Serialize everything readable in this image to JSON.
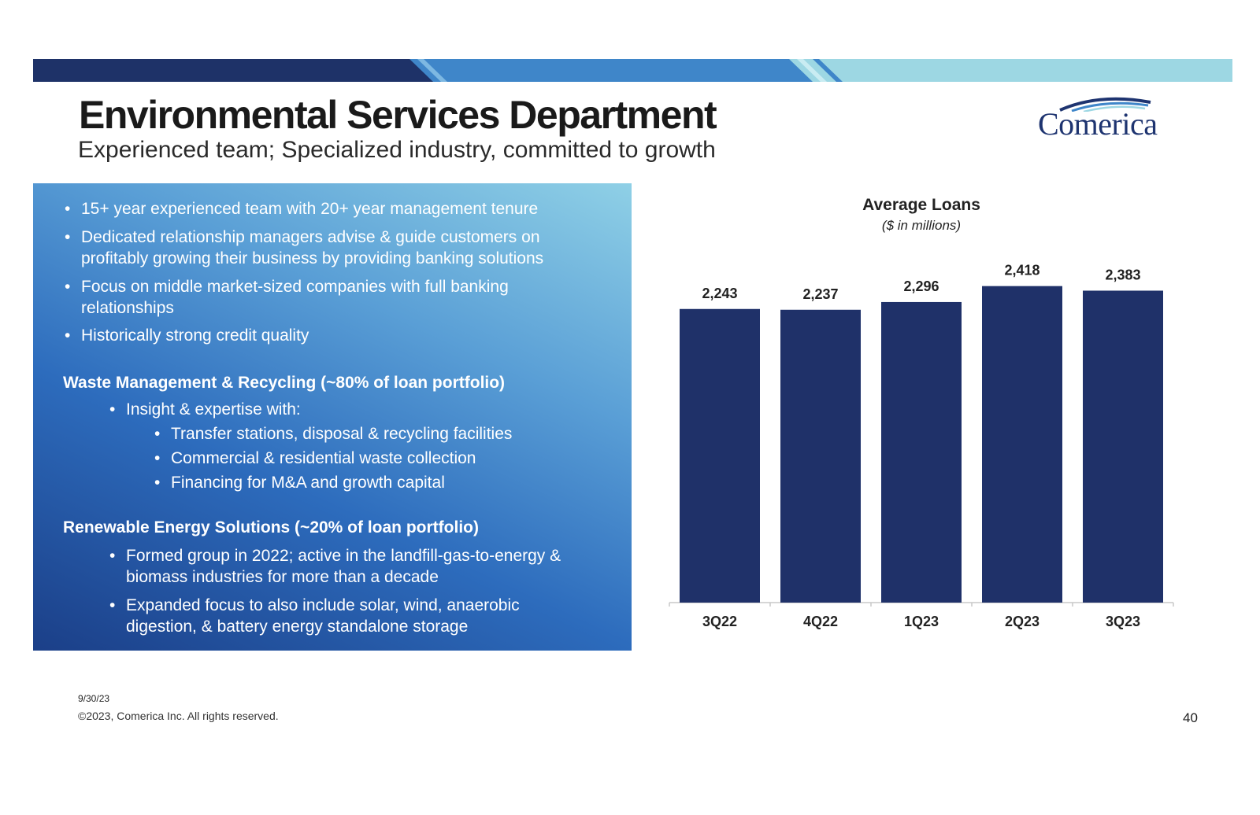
{
  "header": {
    "title": "Environmental Services Department",
    "subtitle": "Experienced team; Specialized industry, committed to growth",
    "logo_text": "Comerica"
  },
  "colors": {
    "navy": "#1e3268",
    "mid_blue": "#3f86c9",
    "light_blue": "#9dd7e3",
    "bar": "#1f3169"
  },
  "panel": {
    "bullets": [
      "15+ year experienced team with 20+ year management tenure",
      "Dedicated relationship managers advise & guide customers on profitably growing their business by providing banking solutions",
      "Focus on middle market-sized companies with full banking relationships",
      "Historically strong credit quality"
    ],
    "waste": {
      "heading": "Waste Management & Recycling (~80% of loan portfolio)",
      "intro": "Insight & expertise with:",
      "items": [
        "Transfer stations, disposal & recycling facilities",
        "Commercial & residential waste collection",
        "Financing for M&A and growth capital"
      ]
    },
    "renewable": {
      "heading": "Renewable Energy Solutions (~20% of loan portfolio)",
      "items": [
        "Formed group in 2022; active in the landfill-gas-to-energy & biomass industries for more than a decade",
        "Expanded focus to also include solar, wind, anaerobic digestion, & battery energy standalone storage"
      ]
    },
    "bullet_glyph": "•"
  },
  "chart_data": {
    "type": "bar",
    "title": "Average Loans",
    "subtitle": "($ in millions)",
    "categories": [
      "3Q22",
      "4Q22",
      "1Q23",
      "2Q23",
      "3Q23"
    ],
    "values": [
      2243,
      2237,
      2296,
      2418,
      2383
    ],
    "value_labels": [
      "2,243",
      "2,237",
      "2,296",
      "2,418",
      "2,383"
    ],
    "ylim": [
      0,
      2500
    ],
    "grid": false,
    "legend": "none"
  },
  "footer": {
    "date": "9/30/23",
    "copyright": "©2023, Comerica Inc. All rights reserved.",
    "page_number": "40"
  }
}
